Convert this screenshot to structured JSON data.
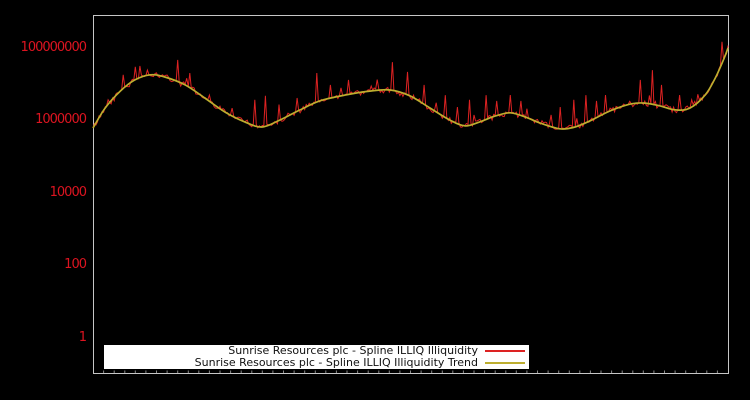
{
  "figure": {
    "background": "#000000",
    "plot_border_color": "#c6c6c6"
  },
  "chart_data": {
    "type": "line",
    "title": "",
    "y_axis": {
      "scale": "log",
      "range_log10": [
        -0.97,
        8.91
      ],
      "tick_color": "#dc1420",
      "ticks": [
        {
          "label": "1",
          "log10": 0
        },
        {
          "label": "100",
          "log10": 2
        },
        {
          "label": "10000",
          "log10": 4
        },
        {
          "label": "1000000",
          "log10": 6
        },
        {
          "label": "100000000",
          "log10": 8
        }
      ]
    },
    "x_axis": {
      "tick_labels_visible": false,
      "minor_tick_count": 60,
      "tick_color": "#8a8a8a"
    },
    "legend": {
      "background": "#ffffff",
      "border_color": "#000000",
      "entries": [
        {
          "label": "Sunrise Resources plc - Spline ILLIQ Illiquidity",
          "color": "#dd2222"
        },
        {
          "label": "Sunrise Resources plc - Spline ILLIQ Illiquidity Trend",
          "color": "#bdae2f"
        }
      ]
    },
    "series": [
      {
        "name": "Sunrise Resources plc - Spline ILLIQ Illiquidity",
        "type": "noisy-line",
        "color": "#dd2222",
        "width": 1,
        "noise": {
          "seed": 42,
          "amplitude_log10": 0.08,
          "minor_spike_rate": 0.08,
          "minor_spike_max_log10": 0.45,
          "samples": 420
        },
        "spikes_frac_log10": [
          [
            0.024,
            6.57
          ],
          [
            0.047,
            7.26
          ],
          [
            0.066,
            7.48
          ],
          [
            0.085,
            7.39
          ],
          [
            0.11,
            7.26
          ],
          [
            0.134,
            7.67
          ],
          [
            0.153,
            7.31
          ],
          [
            0.184,
            6.7
          ],
          [
            0.22,
            6.34
          ],
          [
            0.255,
            6.57
          ],
          [
            0.271,
            6.68
          ],
          [
            0.321,
            6.62
          ],
          [
            0.353,
            7.31
          ],
          [
            0.373,
            6.98
          ],
          [
            0.39,
            6.9
          ],
          [
            0.403,
            7.12
          ],
          [
            0.422,
            6.7
          ],
          [
            0.438,
            6.95
          ],
          [
            0.471,
            7.61
          ],
          [
            0.496,
            7.34
          ],
          [
            0.521,
            6.98
          ],
          [
            0.554,
            6.7
          ],
          [
            0.573,
            6.37
          ],
          [
            0.594,
            6.57
          ],
          [
            0.62,
            6.7
          ],
          [
            0.636,
            6.54
          ],
          [
            0.658,
            6.7
          ],
          [
            0.674,
            6.54
          ],
          [
            0.735,
            6.37
          ],
          [
            0.756,
            6.57
          ],
          [
            0.776,
            6.7
          ],
          [
            0.792,
            6.54
          ],
          [
            0.808,
            6.7
          ],
          [
            0.861,
            7.12
          ],
          [
            0.88,
            7.39
          ],
          [
            0.896,
            6.98
          ],
          [
            0.924,
            6.7
          ],
          [
            0.942,
            6.57
          ],
          [
            0.99,
            8.17
          ]
        ]
      },
      {
        "name": "Sunrise Resources plc - Spline ILLIQ Illiquidity Trend",
        "type": "smooth-line",
        "color": "#bdae2f",
        "width": 1.7,
        "points_frac_log10": [
          [
            0.0,
            5.79
          ],
          [
            0.019,
            6.34
          ],
          [
            0.043,
            6.81
          ],
          [
            0.066,
            7.12
          ],
          [
            0.09,
            7.26
          ],
          [
            0.113,
            7.2
          ],
          [
            0.145,
            6.98
          ],
          [
            0.176,
            6.62
          ],
          [
            0.208,
            6.23
          ],
          [
            0.239,
            5.96
          ],
          [
            0.266,
            5.82
          ],
          [
            0.294,
            6.01
          ],
          [
            0.326,
            6.29
          ],
          [
            0.357,
            6.54
          ],
          [
            0.397,
            6.7
          ],
          [
            0.436,
            6.81
          ],
          [
            0.468,
            6.84
          ],
          [
            0.499,
            6.68
          ],
          [
            0.531,
            6.34
          ],
          [
            0.562,
            6.01
          ],
          [
            0.586,
            5.85
          ],
          [
            0.609,
            5.96
          ],
          [
            0.633,
            6.12
          ],
          [
            0.657,
            6.21
          ],
          [
            0.68,
            6.1
          ],
          [
            0.704,
            5.93
          ],
          [
            0.735,
            5.77
          ],
          [
            0.759,
            5.82
          ],
          [
            0.783,
            5.99
          ],
          [
            0.814,
            6.26
          ],
          [
            0.846,
            6.45
          ],
          [
            0.869,
            6.48
          ],
          [
            0.893,
            6.4
          ],
          [
            0.917,
            6.29
          ],
          [
            0.94,
            6.34
          ],
          [
            0.964,
            6.7
          ],
          [
            0.98,
            7.17
          ],
          [
            0.994,
            7.72
          ],
          [
            1.0,
            8.0
          ]
        ]
      }
    ]
  }
}
